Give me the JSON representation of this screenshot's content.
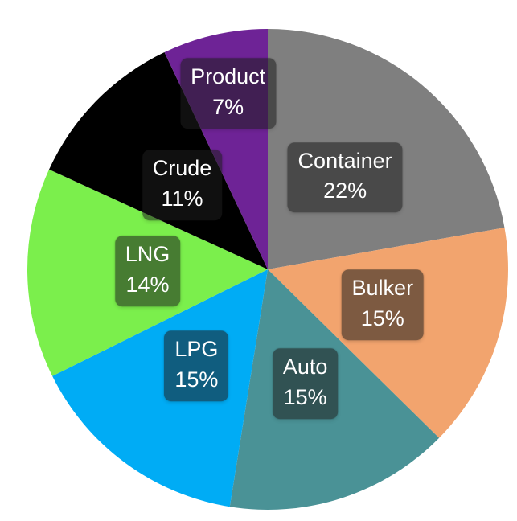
{
  "chart_data": {
    "type": "pie",
    "title": "",
    "legend": "none",
    "data_labels": "category name + percent, inside slices",
    "background_color": "#FFFFFF",
    "label_text_color": "#FFFFFF",
    "label_box_color": "rgba(30,30,30,0.55)",
    "start_angle_deg": 0,
    "direction": "clockwise",
    "slices": [
      {
        "label": "Container",
        "value": 22,
        "pct_label": "22%",
        "color": "#7F7F7F",
        "label_radius": 0.5
      },
      {
        "label": "Bulker",
        "value": 15,
        "pct_label": "15%",
        "color": "#F2A46E",
        "label_radius": 0.5
      },
      {
        "label": "Auto",
        "value": 15,
        "pct_label": "15%",
        "color": "#4A9296",
        "label_radius": 0.5
      },
      {
        "label": "LPG",
        "value": 15,
        "pct_label": "15%",
        "color": "#00ACF5",
        "label_radius": 0.5
      },
      {
        "label": "LNG",
        "value": 14,
        "pct_label": "14%",
        "color": "#7BEF4C",
        "label_radius": 0.5
      },
      {
        "label": "Crude",
        "value": 11,
        "pct_label": "11%",
        "color": "#000000",
        "label_radius": 0.5
      },
      {
        "label": "Product",
        "value": 7,
        "pct_label": "7%",
        "color": "#6E2396",
        "label_radius": 0.75
      }
    ]
  }
}
